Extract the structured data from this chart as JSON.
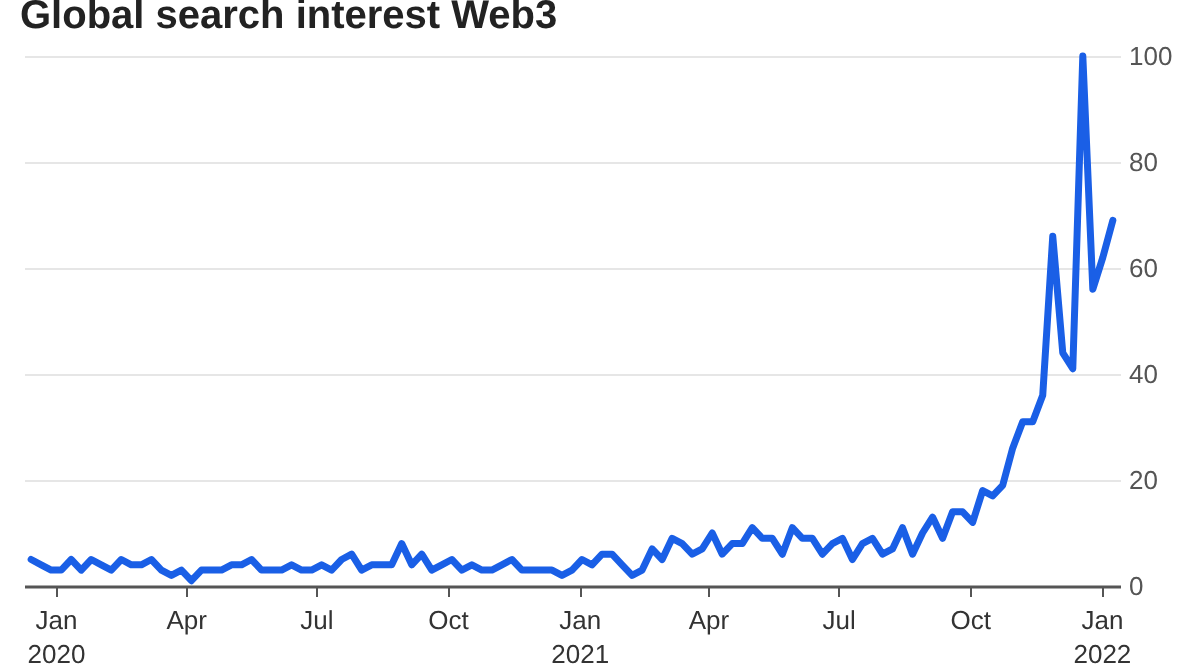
{
  "chart_data": {
    "type": "line",
    "title": "Global search interest Web3",
    "x": [
      "2019-12-15",
      "2019-12-22",
      "2019-12-29",
      "2020-01-05",
      "2020-01-12",
      "2020-01-19",
      "2020-01-26",
      "2020-02-02",
      "2020-02-09",
      "2020-02-16",
      "2020-02-23",
      "2020-03-01",
      "2020-03-08",
      "2020-03-15",
      "2020-03-22",
      "2020-03-29",
      "2020-04-05",
      "2020-04-12",
      "2020-04-19",
      "2020-04-26",
      "2020-05-03",
      "2020-05-10",
      "2020-05-17",
      "2020-05-24",
      "2020-05-31",
      "2020-06-07",
      "2020-06-14",
      "2020-06-21",
      "2020-06-28",
      "2020-07-05",
      "2020-07-12",
      "2020-07-19",
      "2020-07-26",
      "2020-08-02",
      "2020-08-09",
      "2020-08-16",
      "2020-08-23",
      "2020-08-30",
      "2020-09-06",
      "2020-09-13",
      "2020-09-20",
      "2020-09-27",
      "2020-10-04",
      "2020-10-11",
      "2020-10-18",
      "2020-10-25",
      "2020-11-01",
      "2020-11-08",
      "2020-11-15",
      "2020-11-22",
      "2020-11-29",
      "2020-12-06",
      "2020-12-13",
      "2020-12-20",
      "2020-12-27",
      "2021-01-03",
      "2021-01-10",
      "2021-01-17",
      "2021-01-24",
      "2021-01-31",
      "2021-02-07",
      "2021-02-14",
      "2021-02-21",
      "2021-02-28",
      "2021-03-07",
      "2021-03-14",
      "2021-03-21",
      "2021-03-28",
      "2021-04-04",
      "2021-04-11",
      "2021-04-18",
      "2021-04-25",
      "2021-05-02",
      "2021-05-09",
      "2021-05-16",
      "2021-05-23",
      "2021-05-30",
      "2021-06-06",
      "2021-06-13",
      "2021-06-20",
      "2021-06-27",
      "2021-07-04",
      "2021-07-11",
      "2021-07-18",
      "2021-07-25",
      "2021-08-01",
      "2021-08-08",
      "2021-08-15",
      "2021-08-22",
      "2021-08-29",
      "2021-09-05",
      "2021-09-12",
      "2021-09-19",
      "2021-09-26",
      "2021-10-03",
      "2021-10-10",
      "2021-10-17",
      "2021-10-24",
      "2021-10-31",
      "2021-11-07",
      "2021-11-14",
      "2021-11-21",
      "2021-11-28",
      "2021-12-05",
      "2021-12-12",
      "2021-12-19",
      "2021-12-26",
      "2022-01-02",
      "2022-01-09"
    ],
    "series": [
      {
        "color": "#1a5fe6",
        "values": [
          5,
          4,
          3,
          3,
          5,
          3,
          5,
          4,
          3,
          5,
          4,
          4,
          5,
          3,
          2,
          3,
          1,
          3,
          3,
          3,
          4,
          4,
          5,
          3,
          3,
          3,
          4,
          3,
          3,
          4,
          3,
          5,
          6,
          3,
          4,
          4,
          4,
          8,
          4,
          6,
          3,
          4,
          5,
          3,
          4,
          3,
          3,
          4,
          5,
          3,
          3,
          3,
          3,
          2,
          3,
          5,
          4,
          6,
          6,
          4,
          2,
          3,
          7,
          5,
          9,
          8,
          6,
          7,
          10,
          6,
          8,
          8,
          11,
          9,
          9,
          6,
          11,
          9,
          9,
          6,
          8,
          9,
          5,
          8,
          9,
          6,
          7,
          11,
          6,
          10,
          13,
          9,
          14,
          14,
          12,
          18,
          17,
          19,
          26,
          31,
          31,
          36,
          66,
          44,
          41,
          100,
          56,
          62,
          69
        ]
      }
    ],
    "xlim": [
      "2019-12-10",
      "2022-01-14"
    ],
    "xticks": [
      {
        "value": "2020-01-01",
        "label": "Jan 2020"
      },
      {
        "value": "2020-04-01",
        "label": "Apr"
      },
      {
        "value": "2020-07-01",
        "label": "Jul"
      },
      {
        "value": "2020-10-01",
        "label": "Oct"
      },
      {
        "value": "2021-01-01",
        "label": "Jan 2021"
      },
      {
        "value": "2021-04-01",
        "label": "Apr"
      },
      {
        "value": "2021-07-01",
        "label": "Jul"
      },
      {
        "value": "2021-10-01",
        "label": "Oct"
      },
      {
        "value": "2022-01-01",
        "label": "Jan 2022"
      }
    ],
    "ylim": [
      0,
      100
    ],
    "yticks": [
      0,
      20,
      40,
      60,
      80,
      100
    ],
    "grid": "y",
    "legend": false,
    "marker": "none",
    "line_style": "solid"
  }
}
